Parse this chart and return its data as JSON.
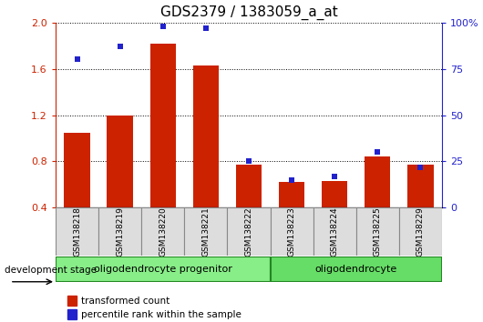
{
  "title": "GDS2379 / 1383059_a_at",
  "samples": [
    "GSM138218",
    "GSM138219",
    "GSM138220",
    "GSM138221",
    "GSM138222",
    "GSM138223",
    "GSM138224",
    "GSM138225",
    "GSM138229"
  ],
  "transformed_count": [
    1.05,
    1.2,
    1.82,
    1.63,
    0.77,
    0.62,
    0.63,
    0.84,
    0.77
  ],
  "percentile_rank": [
    80,
    87,
    98,
    97,
    25,
    15,
    17,
    30,
    22
  ],
  "ylim_left": [
    0.4,
    2.0
  ],
  "ylim_right": [
    0,
    100
  ],
  "yticks_left": [
    0.4,
    0.8,
    1.2,
    1.6,
    2.0
  ],
  "yticks_right": [
    0,
    25,
    50,
    75,
    100
  ],
  "bar_color": "#cc2200",
  "dot_color": "#2222cc",
  "groups": [
    {
      "label": "oligodendrocyte progenitor",
      "start": 0,
      "end": 5,
      "color": "#88ee88"
    },
    {
      "label": "oligodendrocyte",
      "start": 5,
      "end": 9,
      "color": "#66dd66"
    }
  ],
  "group_border_color": "#228822",
  "legend_items": [
    {
      "color": "#cc2200",
      "label": "transformed count"
    },
    {
      "color": "#2222cc",
      "label": "percentile rank within the sample"
    }
  ],
  "title_fontsize": 11,
  "tick_fontsize": 8,
  "label_fontsize": 8.5,
  "bar_bottom": 0.4
}
